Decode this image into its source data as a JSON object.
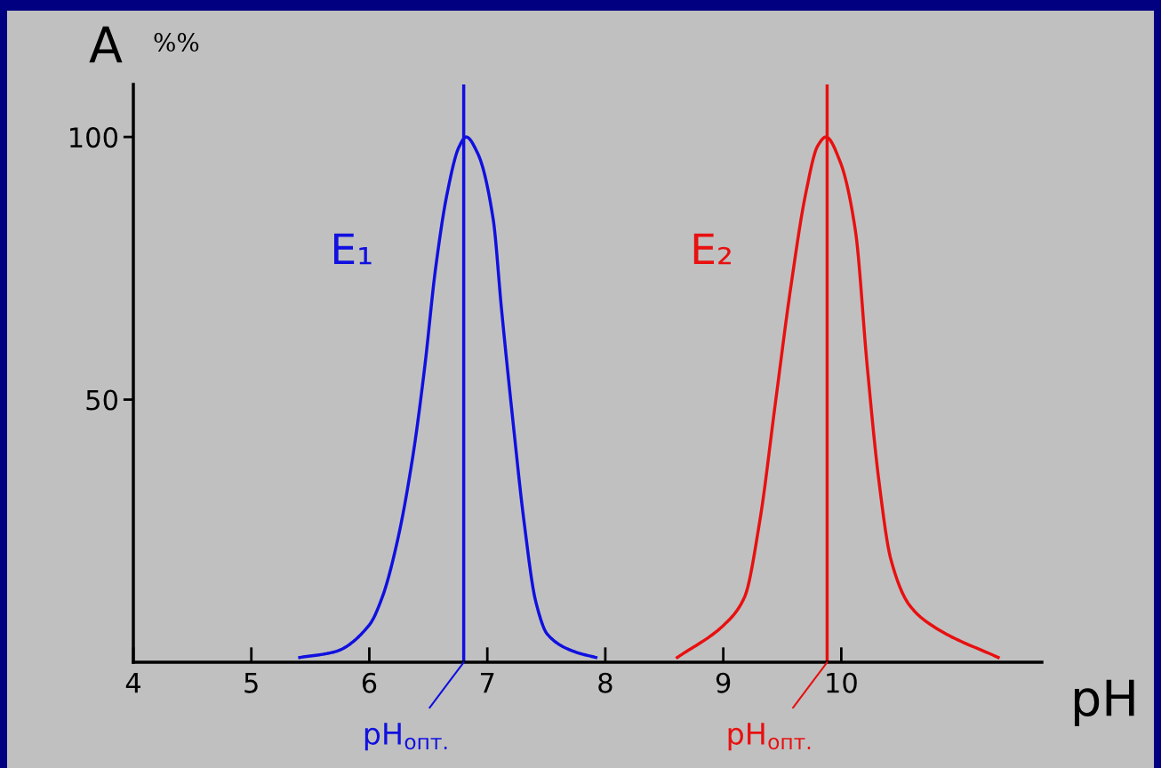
{
  "chart_data": {
    "type": "line",
    "ylabel": "A",
    "xlabel": "pH",
    "series": [
      {
        "name": "E₁",
        "color": "#1010e0",
        "x": [
          5.41,
          5.71,
          6.0,
          6.11,
          6.24,
          6.37,
          6.47,
          6.56,
          6.66,
          6.76,
          6.82,
          6.92,
          7.05,
          7.12,
          7.22,
          7.31,
          7.41,
          7.51,
          7.74,
          7.92
        ],
        "values": [
          0.9,
          2.0,
          7.1,
          12.4,
          23.3,
          39.4,
          56.3,
          74.7,
          89.3,
          98.1,
          100,
          96.8,
          84.3,
          67.3,
          45.3,
          27.0,
          11.6,
          5.3,
          2.0,
          0.9
        ]
      },
      {
        "name": "E₂",
        "color": "#e81010",
        "x": [
          8.61,
          9.01,
          9.18,
          9.31,
          9.44,
          9.57,
          9.7,
          9.8,
          9.87,
          9.99,
          10.12,
          10.22,
          10.32,
          10.42,
          10.58,
          10.81,
          11.33
        ],
        "values": [
          0.9,
          7.2,
          12.4,
          27.0,
          49.1,
          71.1,
          89.4,
          98.3,
          100,
          95.3,
          82.1,
          56.3,
          34.3,
          19.6,
          10.8,
          6.4,
          0.9
        ]
      }
    ],
    "ref_lines": [
      {
        "axis": "x",
        "value": 6.8,
        "label": "pH$_{опт.}$",
        "color": "#1010e0"
      },
      {
        "axis": "x",
        "value": 9.88,
        "label": "pH$_{опт.}$",
        "color": "#e81010"
      }
    ],
    "annotations": [
      "%%"
    ],
    "xlim": [
      4,
      11.7
    ],
    "ylim": [
      0,
      110
    ],
    "xticks": [
      4,
      5,
      6,
      7,
      8,
      9,
      10
    ],
    "yticks": [
      50,
      100
    ],
    "grid": false,
    "marker": "none",
    "line_style": "solid"
  }
}
